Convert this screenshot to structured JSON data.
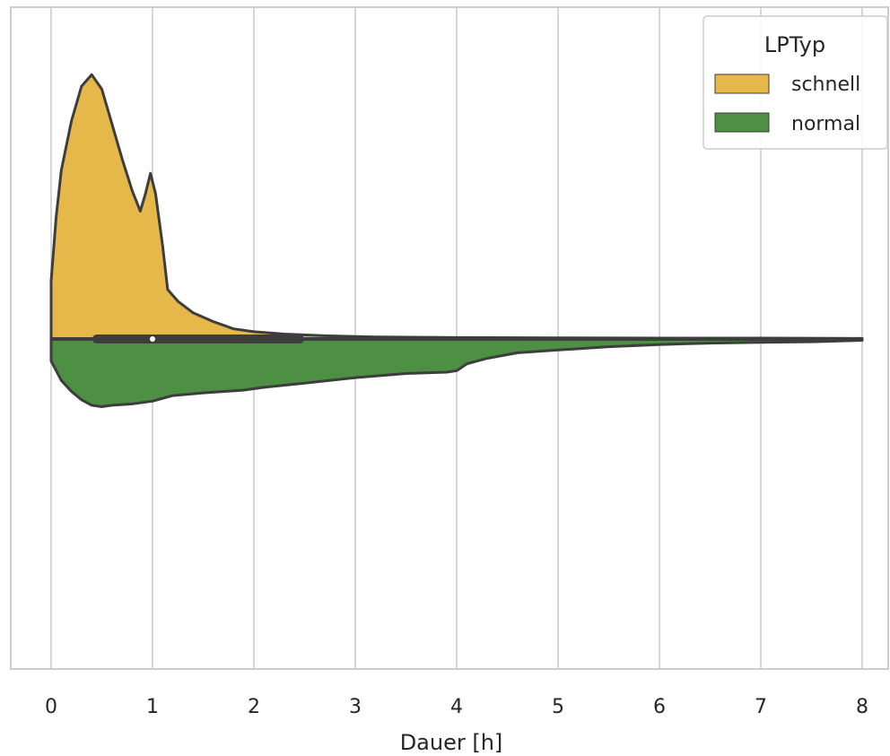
{
  "chart_data": {
    "type": "violin",
    "orientation": "horizontal",
    "split": true,
    "xlabel": "Dauer [h]",
    "ylabel": "",
    "xlim": [
      -0.4,
      8.3
    ],
    "xticks": [
      0,
      1,
      2,
      3,
      4,
      5,
      6,
      7,
      8
    ],
    "grid": true,
    "legend": {
      "title": "LPTyp",
      "position": "top-right"
    },
    "series": [
      {
        "name": "schnell",
        "color": "#e6b84a",
        "side": "upper",
        "density": [
          [
            0.0,
            0.2
          ],
          [
            0.05,
            0.42
          ],
          [
            0.1,
            0.58
          ],
          [
            0.2,
            0.75
          ],
          [
            0.3,
            0.87
          ],
          [
            0.4,
            0.91
          ],
          [
            0.5,
            0.86
          ],
          [
            0.6,
            0.74
          ],
          [
            0.7,
            0.62
          ],
          [
            0.8,
            0.51
          ],
          [
            0.88,
            0.44
          ],
          [
            0.93,
            0.5
          ],
          [
            0.98,
            0.57
          ],
          [
            1.03,
            0.5
          ],
          [
            1.1,
            0.32
          ],
          [
            1.15,
            0.17
          ],
          [
            1.25,
            0.13
          ],
          [
            1.4,
            0.09
          ],
          [
            1.6,
            0.06
          ],
          [
            1.8,
            0.035
          ],
          [
            2.0,
            0.025
          ],
          [
            2.3,
            0.017
          ],
          [
            2.7,
            0.011
          ],
          [
            3.2,
            0.007
          ],
          [
            4.0,
            0.005
          ],
          [
            5.0,
            0.004
          ],
          [
            6.0,
            0.003
          ],
          [
            7.0,
            0.003
          ],
          [
            8.0,
            0.002
          ]
        ]
      },
      {
        "name": "normal",
        "color": "#4d8f43",
        "side": "lower",
        "density": [
          [
            0.0,
            0.08
          ],
          [
            0.1,
            0.15
          ],
          [
            0.2,
            0.19
          ],
          [
            0.3,
            0.22
          ],
          [
            0.4,
            0.24
          ],
          [
            0.5,
            0.245
          ],
          [
            0.6,
            0.24
          ],
          [
            0.8,
            0.235
          ],
          [
            1.0,
            0.225
          ],
          [
            1.2,
            0.205
          ],
          [
            1.5,
            0.195
          ],
          [
            1.9,
            0.185
          ],
          [
            2.1,
            0.175
          ],
          [
            2.5,
            0.16
          ],
          [
            3.0,
            0.14
          ],
          [
            3.5,
            0.125
          ],
          [
            3.9,
            0.12
          ],
          [
            4.0,
            0.115
          ],
          [
            4.1,
            0.09
          ],
          [
            4.3,
            0.07
          ],
          [
            4.6,
            0.05
          ],
          [
            5.0,
            0.04
          ],
          [
            5.5,
            0.028
          ],
          [
            6.0,
            0.02
          ],
          [
            6.5,
            0.015
          ],
          [
            7.0,
            0.012
          ],
          [
            7.5,
            0.01
          ],
          [
            8.0,
            0.005
          ]
        ]
      }
    ],
    "box": {
      "q1": 0.45,
      "median": 1.0,
      "q3": 2.45,
      "whisker_low": 0.0,
      "whisker_high": 8.0
    }
  }
}
